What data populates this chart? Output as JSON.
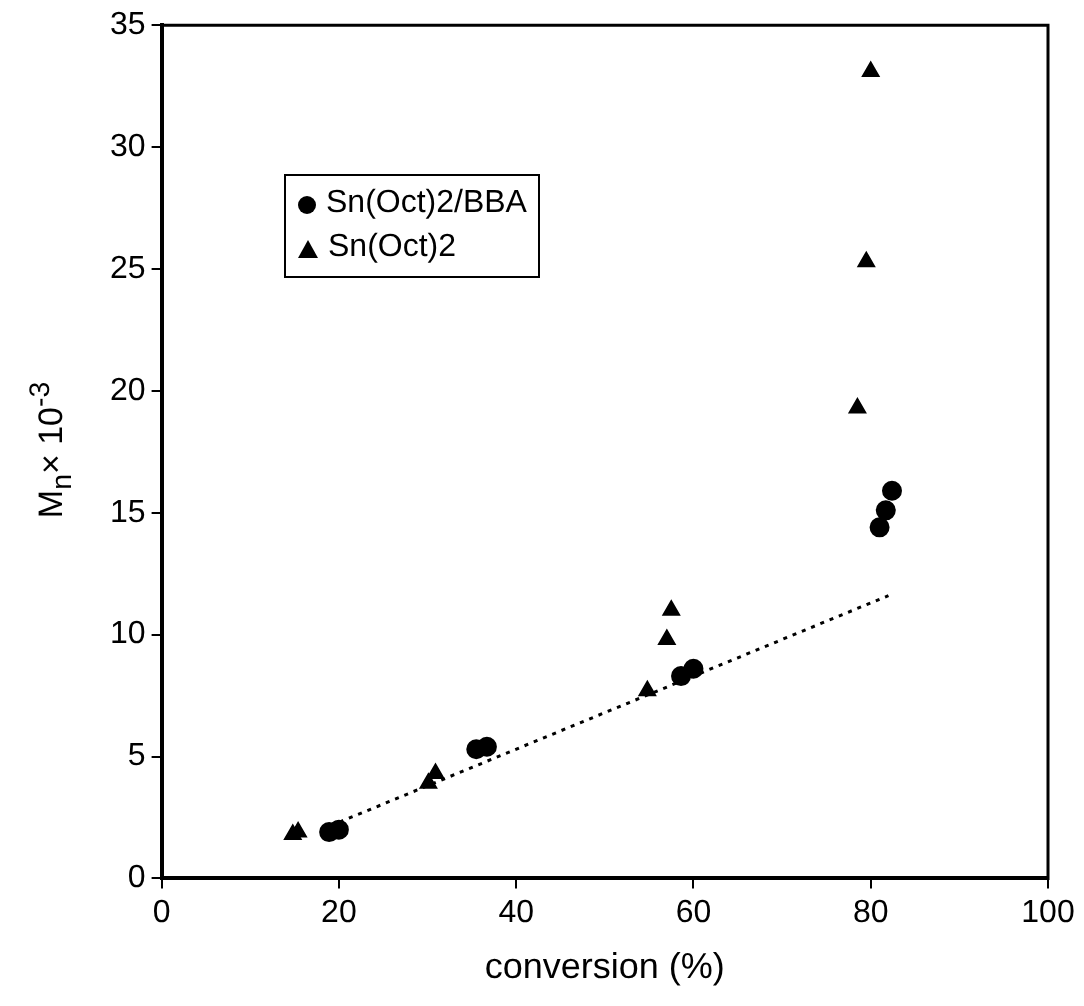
{
  "chart_data": {
    "type": "scatter",
    "xlabel": "conversion (%)",
    "ylabel": "M$_{n}$× 10$^{-3}$",
    "xlim": [
      0,
      100
    ],
    "xticks": [
      0,
      20,
      40,
      60,
      80,
      100
    ],
    "ylim": [
      0,
      35
    ],
    "yticks": [
      0,
      5,
      10,
      15,
      20,
      25,
      30,
      35
    ],
    "grid": false,
    "legend": "top left",
    "series": [
      {
        "name": "Sn(Oct)2/BBA",
        "color": "#000000",
        "marker": "circle",
        "x": [
          18.9,
          20.0,
          35.5,
          36.7,
          58.6,
          60.0,
          81.0,
          81.7,
          82.4
        ],
        "values": [
          1.9,
          2.0,
          5.3,
          5.4,
          8.3,
          8.6,
          14.4,
          15.1,
          15.9
        ]
      },
      {
        "name": "Sn(Oct)2",
        "color": "#000000",
        "marker": "triangle",
        "x": [
          14.8,
          15.4,
          30.1,
          30.9,
          54.8,
          57.0,
          57.5,
          78.5,
          79.5,
          80.0
        ],
        "values": [
          1.8,
          1.9,
          3.9,
          4.3,
          7.7,
          9.8,
          11.0,
          19.3,
          25.3,
          33.1
        ]
      },
      {
        "type": "line",
        "color": "#000000",
        "line_style": "dotted",
        "marker": "none",
        "x": [
          18,
          82
        ],
        "values": [
          2.0,
          11.6
        ]
      }
    ]
  }
}
